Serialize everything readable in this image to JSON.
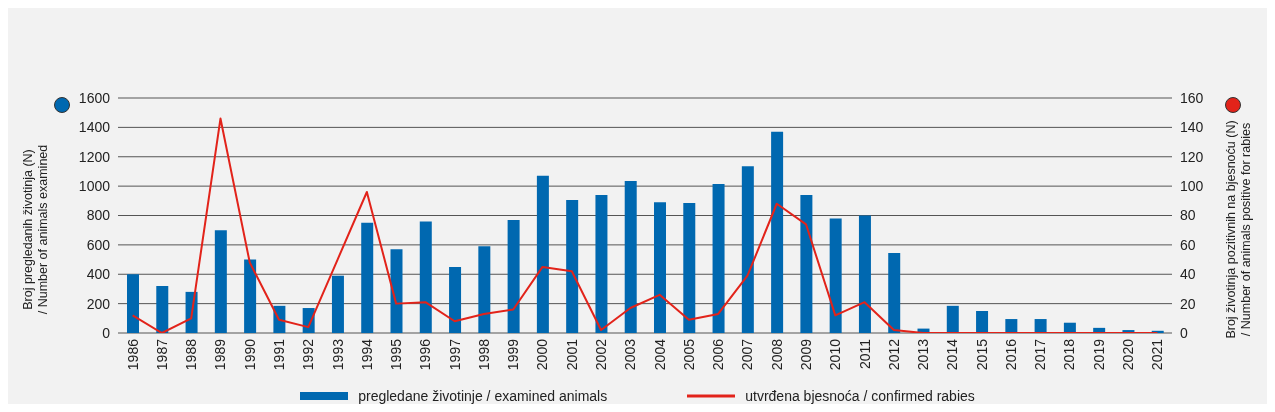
{
  "chart_data": {
    "type": "bar",
    "categories": [
      "1986",
      "1987",
      "1988",
      "1989",
      "1990",
      "1991",
      "1992",
      "1993",
      "1994",
      "1995",
      "1996",
      "1997",
      "1998",
      "1999",
      "2000",
      "2001",
      "2002",
      "2003",
      "2004",
      "2005",
      "2006",
      "2007",
      "2008",
      "2009",
      "2010",
      "2011",
      "2012",
      "2013",
      "2014",
      "2015",
      "2016",
      "2017",
      "2018",
      "2019",
      "2020",
      "2021"
    ],
    "ylabel": "Broj pregledanih životinja (N) / Number of animals examined",
    "y2label": "Broj životinja pozitivnih na bjesnoću (N) / Number of animals positive for rabies",
    "ylim": [
      0,
      1600
    ],
    "yticks": [
      0,
      200,
      400,
      600,
      800,
      1000,
      1200,
      1400,
      1600
    ],
    "y2lim": [
      0,
      160
    ],
    "y2ticks": [
      0,
      20,
      40,
      60,
      80,
      100,
      120,
      140,
      160
    ],
    "grid": "y",
    "legend": "bottom",
    "series": [
      {
        "name": "pregledane životinje / examined animals",
        "color": "#0068b0",
        "values": [
          400,
          320,
          280,
          700,
          500,
          185,
          170,
          390,
          750,
          570,
          760,
          450,
          590,
          770,
          1070,
          905,
          940,
          1035,
          890,
          885,
          1015,
          1135,
          1370,
          940,
          780,
          800,
          545,
          30,
          185,
          150,
          95,
          95,
          70,
          35,
          20,
          15
        ]
      },
      {
        "name": "utvrđena bjesnoća / confirmed rabies",
        "type": "line",
        "axis": "y2",
        "marker": "none",
        "color": "#e2231a",
        "values": [
          12,
          0,
          10,
          146,
          48,
          9,
          4,
          50,
          96,
          20,
          21,
          8,
          13,
          16,
          45,
          42,
          2,
          17,
          26,
          9,
          13,
          39,
          88,
          74,
          12,
          21,
          2,
          0,
          0,
          0,
          0,
          0,
          0,
          0,
          0,
          0
        ]
      }
    ]
  }
}
